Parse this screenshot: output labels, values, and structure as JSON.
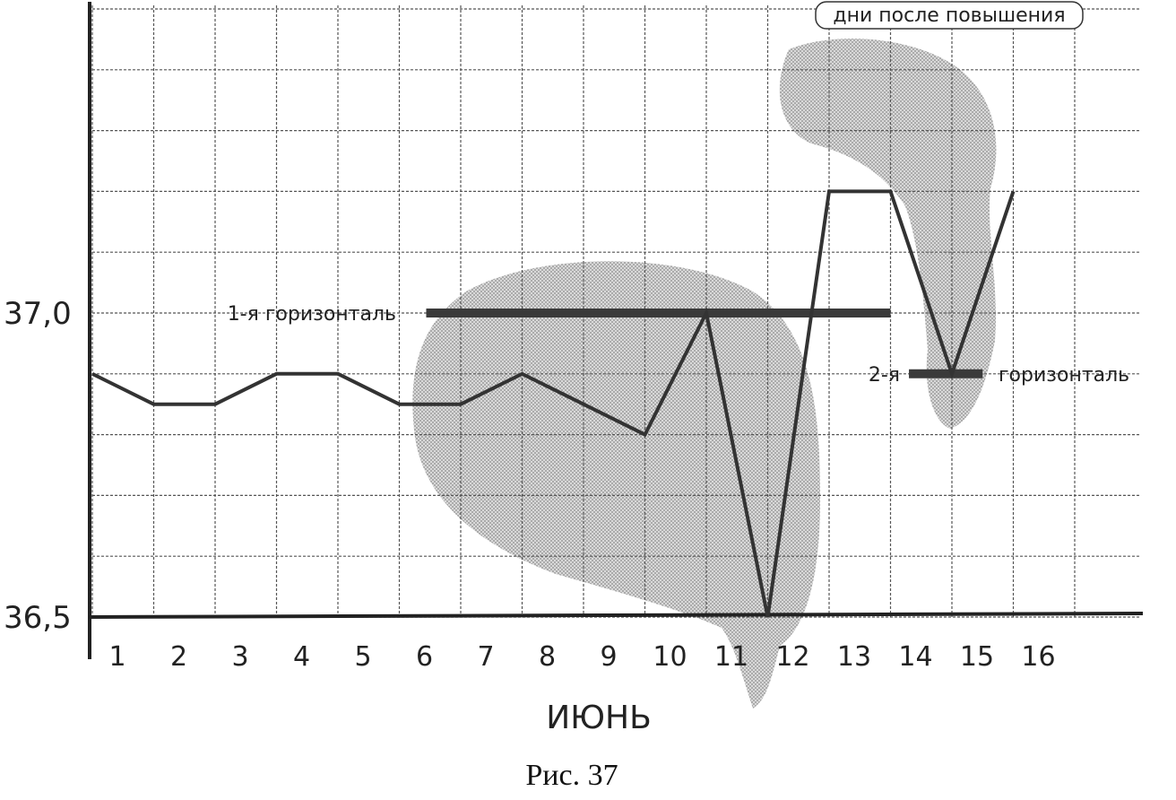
{
  "chart_data": {
    "type": "line",
    "xlabel": "ИЮНЬ",
    "ylabel": "",
    "x": [
      1,
      2,
      3,
      4,
      5,
      6,
      7,
      8,
      9,
      10,
      11,
      12,
      13,
      14,
      15,
      16
    ],
    "x_tick_labels": [
      "1",
      "2",
      "3",
      "4",
      "5",
      "6",
      "7",
      "8",
      "9",
      "10",
      "11",
      "12",
      "13",
      "14",
      "15",
      "16"
    ],
    "y_tick_labels": [
      "36,5",
      "37,0"
    ],
    "y_ticks": [
      36.5,
      37.0
    ],
    "ylim": [
      36.5,
      37.25
    ],
    "grid": true,
    "series": [
      {
        "x": [
          1,
          2,
          3,
          4,
          5,
          6,
          7,
          8,
          9,
          10,
          11,
          12,
          13,
          14,
          15,
          16
        ],
        "values": [
          36.9,
          36.85,
          36.85,
          36.9,
          36.9,
          36.85,
          36.85,
          36.9,
          36.85,
          36.8,
          37.0,
          36.5,
          37.2,
          37.2,
          36.9,
          37.2
        ]
      }
    ],
    "horizontals": [
      {
        "label": "1-я горизонталь",
        "y": 37.0,
        "x_start": 6,
        "x_end": 14
      },
      {
        "label_left": "2-я",
        "label_right": "горизонталь",
        "y": 36.9,
        "x_start": 14.3,
        "x_end": 15.5
      }
    ],
    "annotation": "дни после повышения",
    "caption": "Рис. 37"
  },
  "colors": {
    "line": "#333333",
    "horizontal": "#3a3a3a",
    "shade": "#b8b8b8",
    "grid": "#555555"
  }
}
